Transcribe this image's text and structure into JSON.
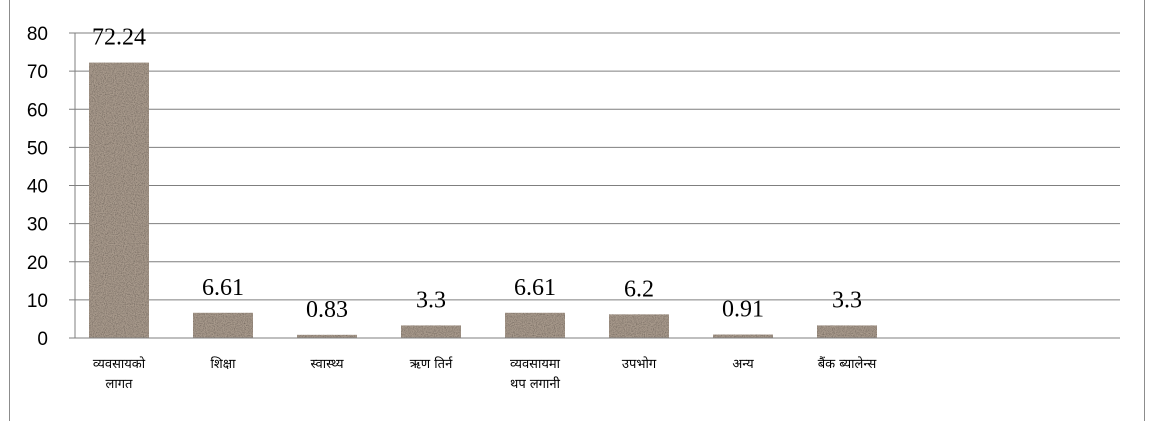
{
  "chart_data": {
    "type": "bar",
    "categories": [
      [
        "व्यवसायको",
        "लागत"
      ],
      [
        "शिक्षा"
      ],
      [
        "स्वास्थ्य"
      ],
      [
        "ऋण तिर्न"
      ],
      [
        "व्यवसायमा",
        "थप लगानी"
      ],
      [
        "उपभोग"
      ],
      [
        "अन्य"
      ],
      [
        "बैंक ब्यालेन्स"
      ]
    ],
    "values": [
      72.24,
      6.61,
      0.83,
      3.3,
      6.61,
      6.2,
      0.91,
      3.3
    ],
    "data_labels": [
      "72.24",
      "6.61",
      "0.83",
      "3.3",
      "6.61",
      "6.2",
      "0.91",
      "3.3"
    ],
    "ylim": [
      0,
      80
    ],
    "yticks": [
      0,
      10,
      20,
      30,
      40,
      50,
      60,
      70,
      80
    ],
    "grid": true,
    "bar_color": "#a89a8c"
  }
}
